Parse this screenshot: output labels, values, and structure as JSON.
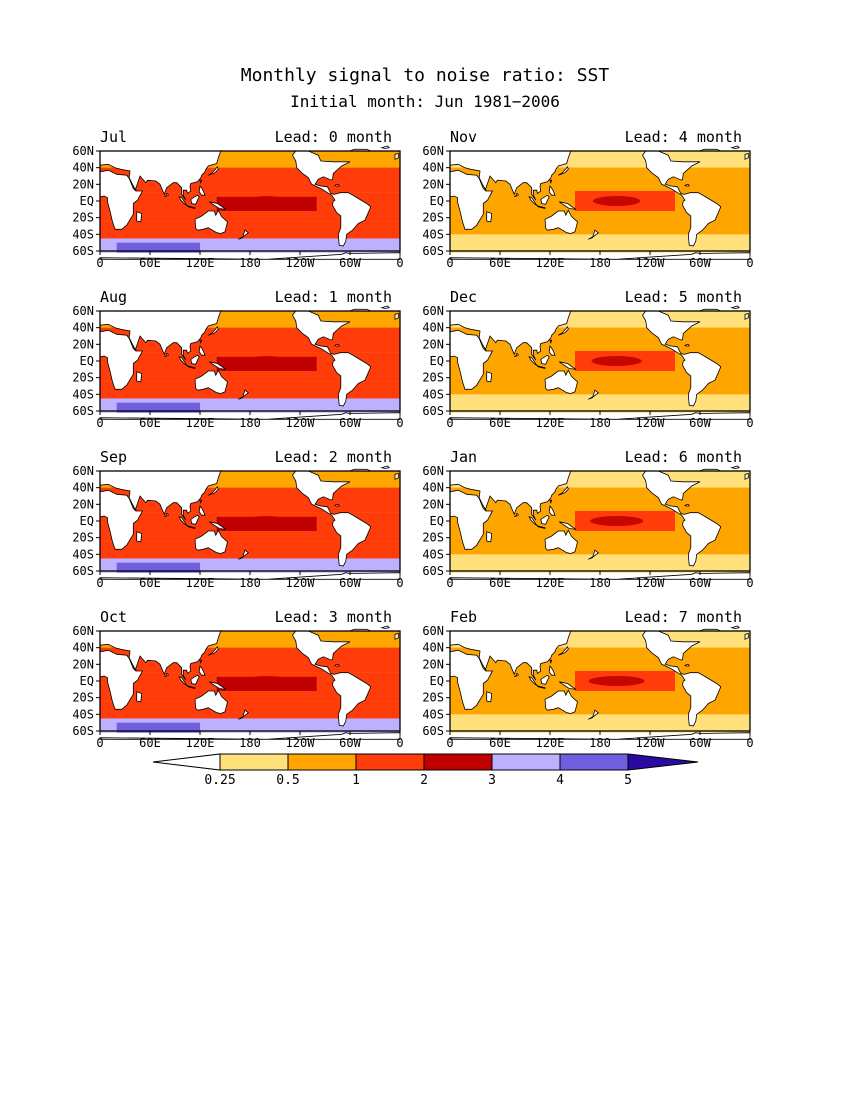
{
  "title": "Monthly signal to noise ratio: SST",
  "subtitle": "Initial month: Jun 1981−2006",
  "lat_labels": [
    "60N",
    "40N",
    "20N",
    "EQ",
    "20S",
    "40S",
    "60S"
  ],
  "lon_labels_std": [
    "0",
    "60E",
    "120E",
    "180",
    "120W",
    "60W",
    "0"
  ],
  "lon_labels_alt": [
    "0",
    "60E",
    "120E",
    "180",
    "120W",
    "60W",
    "0"
  ],
  "lon_labels_oct": [
    "0",
    "60E",
    "120E",
    "180",
    "120W",
    "60W",
    "0"
  ],
  "panels": [
    {
      "month": "Jul",
      "lead": "Lead: 0 month",
      "lead_value": 0
    },
    {
      "month": "Nov",
      "lead": "Lead: 4 month",
      "lead_value": 4
    },
    {
      "month": "Aug",
      "lead": "Lead: 1 month",
      "lead_value": 1
    },
    {
      "month": "Dec",
      "lead": "Lead: 5 month",
      "lead_value": 5
    },
    {
      "month": "Sep",
      "lead": "Lead: 2 month",
      "lead_value": 2
    },
    {
      "month": "Jan",
      "lead": "Lead: 6 month",
      "lead_value": 6
    },
    {
      "month": "Oct",
      "lead": "Lead: 3 month",
      "lead_value": 3
    },
    {
      "month": "Feb",
      "lead": "Lead: 7 month",
      "lead_value": 7
    }
  ],
  "colorbar": {
    "levels": [
      "0.25",
      "0.5",
      "1",
      "2",
      "3",
      "4",
      "5"
    ],
    "colors": [
      "#ffffff",
      "#ffe07a",
      "#ffa500",
      "#ff3c0a",
      "#c00000",
      "#bcb0ff",
      "#7060e0",
      "#2a0aa0"
    ]
  }
}
